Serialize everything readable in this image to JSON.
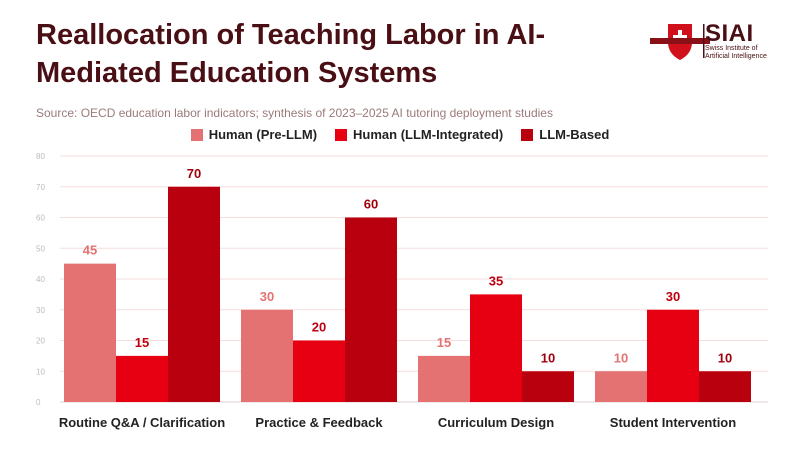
{
  "title": "Reallocation of Teaching Labor in AI-Mediated Education Systems",
  "subtitle": "Source: OECD education labor indicators; synthesis of 2023–2025 AI tutoring deployment studies",
  "logo": {
    "text": "SIAI",
    "subtitle": "Swiss Institute of Artificial Intelligence"
  },
  "chart_data": {
    "type": "bar",
    "categories": [
      "Routine Q&A / Clarification",
      "Practice & Feedback",
      "Curriculum Design",
      "Student Intervention"
    ],
    "series": [
      {
        "name": "Human (Pre-LLM)",
        "color": "#e47272",
        "label_color": "#e47272",
        "values": [
          45,
          30,
          15,
          10
        ]
      },
      {
        "name": "Human (LLM-Integrated)",
        "color": "#e60012",
        "label_color": "#c00010",
        "values": [
          15,
          20,
          35,
          30
        ]
      },
      {
        "name": "LLM-Based",
        "color": "#b8000f",
        "label_color": "#a0000d",
        "values": [
          70,
          60,
          10,
          10
        ]
      }
    ],
    "ylim": [
      0,
      80
    ],
    "yticks": [
      0,
      10,
      20,
      30,
      40,
      50,
      60,
      70,
      80
    ],
    "grid": true,
    "legend_position": "top"
  }
}
